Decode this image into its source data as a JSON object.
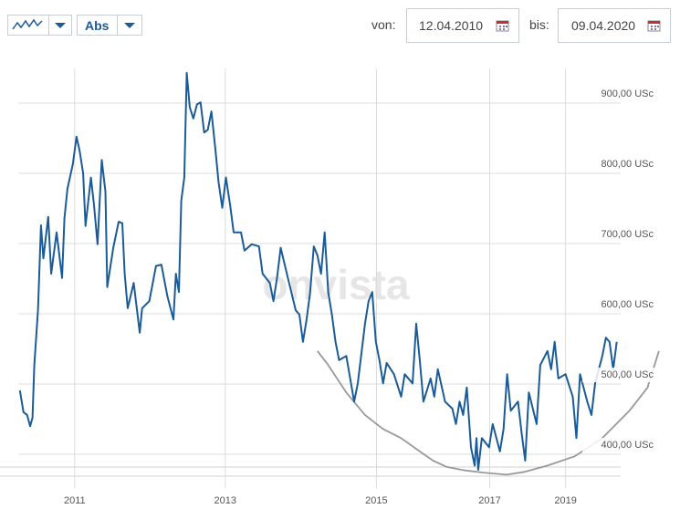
{
  "controls": {
    "mode": "Abs",
    "from_label": "von:",
    "from_date": "12.04.2010",
    "to_label": "bis:",
    "to_date": "09.04.2020"
  },
  "watermark": "onvista",
  "chart_data": {
    "type": "line",
    "xlim": [
      2009.98,
      2021.27
    ],
    "ylim": [
      345.5,
      968.8
    ],
    "xticks": [
      {
        "value": 2011.22,
        "label": "2011"
      },
      {
        "value": 2013.72,
        "label": "2013"
      },
      {
        "value": 2016.23,
        "label": "2015"
      },
      {
        "value": 2018.11,
        "label": "2017"
      },
      {
        "value": 2019.37,
        "label": "2019"
      }
    ],
    "yticks": [
      {
        "value": 400,
        "label": "400,00 USc"
      },
      {
        "value": 500,
        "label": "500,00 USc"
      },
      {
        "value": 600,
        "label": "600,00 USc"
      },
      {
        "value": 700,
        "label": "700,00 USc"
      },
      {
        "value": 800,
        "label": "800,00 USc"
      },
      {
        "value": 900,
        "label": "900,00 USc"
      }
    ],
    "grid": true,
    "series": [
      {
        "color": "#1b5b97",
        "x": [
          2010.31,
          2010.37,
          2010.43,
          2010.48,
          2010.52,
          2010.55,
          2010.61,
          2010.66,
          2010.7,
          2010.78,
          2010.83,
          2010.92,
          2011.01,
          2011.05,
          2011.1,
          2011.19,
          2011.25,
          2011.3,
          2011.36,
          2011.4,
          2011.49,
          2011.54,
          2011.6,
          2011.64,
          2011.67,
          2011.73,
          2011.76,
          2011.86,
          2011.95,
          2012.01,
          2012.05,
          2012.1,
          2012.2,
          2012.3,
          2012.34,
          2012.46,
          2012.57,
          2012.66,
          2012.76,
          2012.86,
          2012.9,
          2012.95,
          2012.99,
          2013.04,
          2013.08,
          2013.13,
          2013.19,
          2013.25,
          2013.31,
          2013.37,
          2013.43,
          2013.49,
          2013.55,
          2013.61,
          2013.67,
          2013.73,
          2013.8,
          2013.86,
          2013.98,
          2014.04,
          2014.16,
          2014.28,
          2014.34,
          2014.46,
          2014.52,
          2014.58,
          2014.64,
          2014.76,
          2014.89,
          2014.95,
          2015.01,
          2015.07,
          2015.13,
          2015.19,
          2015.25,
          2015.31,
          2015.37,
          2015.43,
          2015.49,
          2015.55,
          2015.61,
          2015.73,
          2015.86,
          2015.92,
          2016.04,
          2016.1,
          2016.16,
          2016.22,
          2016.28,
          2016.34,
          2016.4,
          2016.52,
          2016.64,
          2016.7,
          2016.83,
          2016.89,
          2016.95,
          2017.01,
          2017.13,
          2017.19,
          2017.25,
          2017.37,
          2017.49,
          2017.55,
          2017.61,
          2017.67,
          2017.73,
          2017.8,
          2017.86,
          2017.89,
          2017.92,
          2017.98,
          2018.1,
          2018.16,
          2018.28,
          2018.34,
          2018.4,
          2018.46,
          2018.58,
          2018.64,
          2018.7,
          2018.76,
          2018.89,
          2018.95,
          2019.07,
          2019.13,
          2019.19,
          2019.25,
          2019.37,
          2019.49,
          2019.55,
          2019.61,
          2019.73,
          2019.8,
          2019.86,
          2019.98,
          2020.04,
          2020.1,
          2020.16,
          2020.22
        ],
        "values": [
          491,
          460,
          456,
          440,
          452,
          527,
          605,
          726,
          679,
          738,
          657,
          716,
          651,
          736,
          778,
          813,
          852,
          833,
          800,
          725,
          794,
          756,
          699,
          768,
          819,
          774,
          638,
          694,
          731,
          729,
          657,
          608,
          644,
          573,
          608,
          618,
          668,
          670,
          625,
          592,
          657,
          631,
          761,
          794,
          943,
          894,
          878,
          898,
          901,
          858,
          862,
          888,
          839,
          787,
          751,
          794,
          755,
          716,
          716,
          690,
          699,
          696,
          657,
          644,
          618,
          651,
          694,
          651,
          605,
          599,
          560,
          592,
          631,
          696,
          683,
          657,
          716,
          631,
          599,
          560,
          534,
          540,
          475,
          501,
          586,
          618,
          631,
          560,
          534,
          501,
          530,
          514,
          482,
          514,
          501,
          586,
          534,
          475,
          508,
          482,
          521,
          475,
          465,
          443,
          475,
          456,
          495,
          410,
          384,
          423,
          378,
          423,
          410,
          443,
          404,
          436,
          514,
          462,
          475,
          430,
          391,
          488,
          443,
          527,
          547,
          521,
          560,
          508,
          514,
          482,
          423,
          514,
          475,
          456,
          501,
          540,
          566,
          560,
          521,
          560
        ]
      },
      {
        "color": "#999999",
        "x": [
          2015.25,
          2015.43,
          2015.73,
          2016.04,
          2016.34,
          2016.64,
          2016.95,
          2017.17,
          2017.4,
          2017.7,
          2018.01,
          2018.39,
          2018.69,
          2019.07,
          2019.52,
          2019.98,
          2020.43,
          2020.73,
          2020.92
        ],
        "values": [
          547,
          527,
          488,
          456,
          436,
          423,
          404,
          391,
          382,
          377,
          374,
          371,
          375,
          384,
          397,
          423,
          462,
          495,
          547
        ]
      }
    ]
  }
}
